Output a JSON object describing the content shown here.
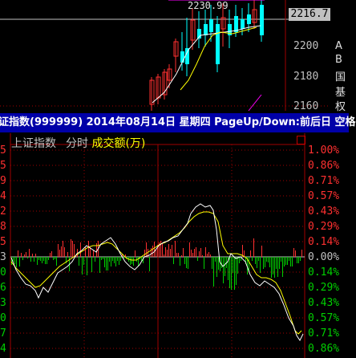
{
  "kline": {
    "peak_label": "2230.99",
    "current_price": "2216.7",
    "price_levels": [
      "2200",
      "2180",
      "2160"
    ],
    "side_labels": [
      "A",
      "B",
      "国",
      "基",
      "权"
    ],
    "colors": {
      "up": "#ff3030",
      "down": "#00ffff",
      "ma1": "#ffffff",
      "ma2": "#ffff00",
      "ma3": "#ff00ff"
    }
  },
  "statusbar": {
    "text": "证指数(999999) 2014年08月14日 星期四 PageUp/Down:前后日 空格"
  },
  "intraday": {
    "header": {
      "name": "上证指数",
      "mode": "分时",
      "volume_label": "成交额(万)"
    },
    "right_pct": [
      "1.00%",
      "0.86%",
      "0.71%",
      "0.57%",
      "0.43%",
      "0.29%",
      "0.14%",
      "0.00%",
      "0.14%",
      "0.29%",
      "0.43%",
      "0.57%",
      "0.71%",
      "0.86%"
    ],
    "left_prices": [
      "5",
      "5",
      "9",
      "4",
      "2",
      "8",
      "5",
      "3",
      "0",
      "6",
      "3",
      "0",
      "7",
      "4"
    ],
    "colors": {
      "price_line": "#ffffff",
      "avg_line": "#ffff00",
      "up_bar": "#ff3030",
      "down_bar": "#00d000",
      "grid": "#a00000",
      "zero": "#c0c0c0"
    }
  }
}
